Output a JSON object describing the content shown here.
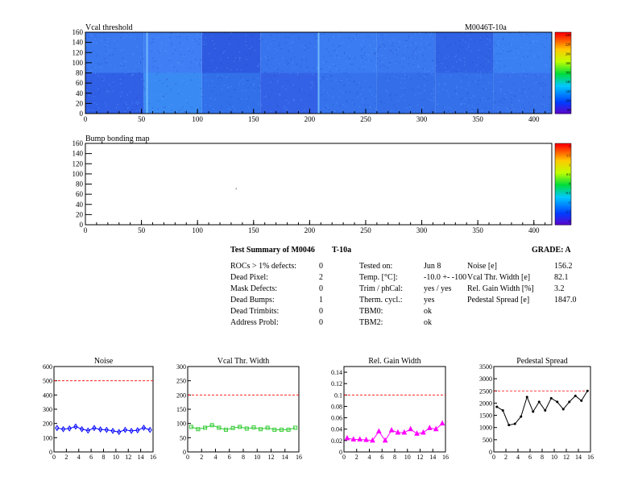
{
  "vcal_map": {
    "title": "Vcal threshold",
    "module_label": "M0046T-10a",
    "x_ticks": [
      0,
      50,
      100,
      150,
      200,
      250,
      300,
      350,
      400
    ],
    "y_ticks": [
      0,
      20,
      40,
      60,
      80,
      100,
      120,
      140,
      160
    ],
    "xlim": [
      0,
      416
    ],
    "ylim": [
      0,
      160
    ],
    "colorbar_labels": [
      "240",
      "220",
      "200",
      "180",
      "160",
      "140",
      "120",
      "100",
      "80"
    ]
  },
  "bump_map": {
    "title": "Bump bonding map",
    "x_ticks": [
      0,
      50,
      100,
      150,
      200,
      250,
      300,
      350,
      400
    ],
    "y_ticks": [
      0,
      20,
      40,
      60,
      80,
      100,
      120,
      140,
      160
    ],
    "xlim": [
      0,
      416
    ],
    "ylim": [
      0,
      160
    ],
    "colorbar_labels": [
      "2",
      "1.5",
      "1",
      "0.5",
      "0",
      "-0.5",
      "-1",
      "-1.5",
      "-2"
    ]
  },
  "summary": {
    "title": "Test Summary of M0046",
    "module": "T-10a",
    "grade": "GRADE:  A",
    "left": [
      {
        "label": "ROCs > 1% defects:",
        "value": "0"
      },
      {
        "label": "Dead Pixel:",
        "value": "2"
      },
      {
        "label": "Mask Defects:",
        "value": "0"
      },
      {
        "label": "Dead Bumps:",
        "value": "1"
      },
      {
        "label": "Dead Trimbits:",
        "value": "0"
      },
      {
        "label": "Address Probl:",
        "value": "0"
      }
    ],
    "middle": [
      {
        "label": "Tested on:",
        "value": "Jun 8"
      },
      {
        "label": "Temp. [°C]:",
        "value": "-10.0 +- -100"
      },
      {
        "label": "Trim / phCal:",
        "value": "yes / yes"
      },
      {
        "label": "Therm. cycl.:",
        "value": "yes"
      },
      {
        "label": "TBM0:",
        "value": "ok"
      },
      {
        "label": "TBM2:",
        "value": "ok"
      }
    ],
    "right": [
      {
        "label": "Noise [e]",
        "value": "156.2"
      },
      {
        "label": "Vcal Thr. Width [e]",
        "value": "82.1"
      },
      {
        "label": "Rel. Gain Width [%]",
        "value": "3.2"
      },
      {
        "label": "Pedestal Spread [e]",
        "value": "1847.0"
      }
    ]
  },
  "chart_data": [
    {
      "type": "line",
      "title": "Noise",
      "x": [
        0,
        1,
        2,
        3,
        4,
        5,
        6,
        7,
        8,
        9,
        10,
        11,
        12,
        13,
        14,
        15
      ],
      "values": [
        168,
        160,
        165,
        178,
        160,
        150,
        168,
        158,
        155,
        148,
        140,
        155,
        148,
        152,
        170,
        155
      ],
      "xlim": [
        0,
        16
      ],
      "ylim": [
        0,
        600
      ],
      "y_ticks": [
        0,
        100,
        200,
        300,
        400,
        500,
        600
      ],
      "x_ticks": [
        0,
        2,
        4,
        6,
        8,
        10,
        12,
        14,
        16
      ],
      "limit": 500,
      "color": "#0000ff",
      "marker": "diamond"
    },
    {
      "type": "line",
      "title": "Vcal Thr. Width",
      "x": [
        0,
        1,
        2,
        3,
        4,
        5,
        6,
        7,
        8,
        9,
        10,
        11,
        12,
        13,
        14,
        15
      ],
      "values": [
        88,
        80,
        85,
        94,
        85,
        78,
        84,
        88,
        82,
        86,
        80,
        85,
        78,
        78,
        78,
        85
      ],
      "xlim": [
        0,
        16
      ],
      "ylim": [
        0,
        300
      ],
      "y_ticks": [
        0,
        50,
        100,
        150,
        200,
        250,
        300
      ],
      "x_ticks": [
        0,
        2,
        4,
        6,
        8,
        10,
        12,
        14,
        16
      ],
      "limit": 200,
      "color": "#33cc33",
      "marker": "square"
    },
    {
      "type": "line",
      "title": "Rel. Gain Width",
      "x": [
        0,
        1,
        2,
        3,
        4,
        5,
        6,
        7,
        8,
        9,
        10,
        11,
        12,
        13,
        14,
        15
      ],
      "values": [
        0.024,
        0.022,
        0.022,
        0.021,
        0.02,
        0.036,
        0.02,
        0.038,
        0.034,
        0.034,
        0.04,
        0.032,
        0.034,
        0.042,
        0.04,
        0.05
      ],
      "xlim": [
        0,
        16
      ],
      "ylim": [
        0,
        0.15
      ],
      "y_ticks": [
        0,
        0.02,
        0.04,
        0.06,
        0.08,
        0.1,
        0.12,
        0.14
      ],
      "x_ticks": [
        0,
        2,
        4,
        6,
        8,
        10,
        12,
        14,
        16
      ],
      "limit": 0.1,
      "color": "#ff00ff",
      "marker": "star"
    },
    {
      "type": "line",
      "title": "Pedestal Spread",
      "x": [
        0,
        1,
        2,
        3,
        4,
        5,
        6,
        7,
        8,
        9,
        10,
        11,
        12,
        13,
        14,
        15
      ],
      "values": [
        1850,
        1700,
        1100,
        1150,
        1450,
        2250,
        1650,
        2050,
        1700,
        2200,
        2050,
        1750,
        2050,
        2300,
        2100,
        2500
      ],
      "xlim": [
        0,
        16
      ],
      "ylim": [
        0,
        3500
      ],
      "y_ticks": [
        0,
        500,
        1000,
        1500,
        2000,
        2500,
        3000,
        3500
      ],
      "x_ticks": [
        0,
        2,
        4,
        6,
        8,
        10,
        12,
        14,
        16
      ],
      "limit": 2500,
      "color": "#000000",
      "marker": "dot"
    }
  ]
}
